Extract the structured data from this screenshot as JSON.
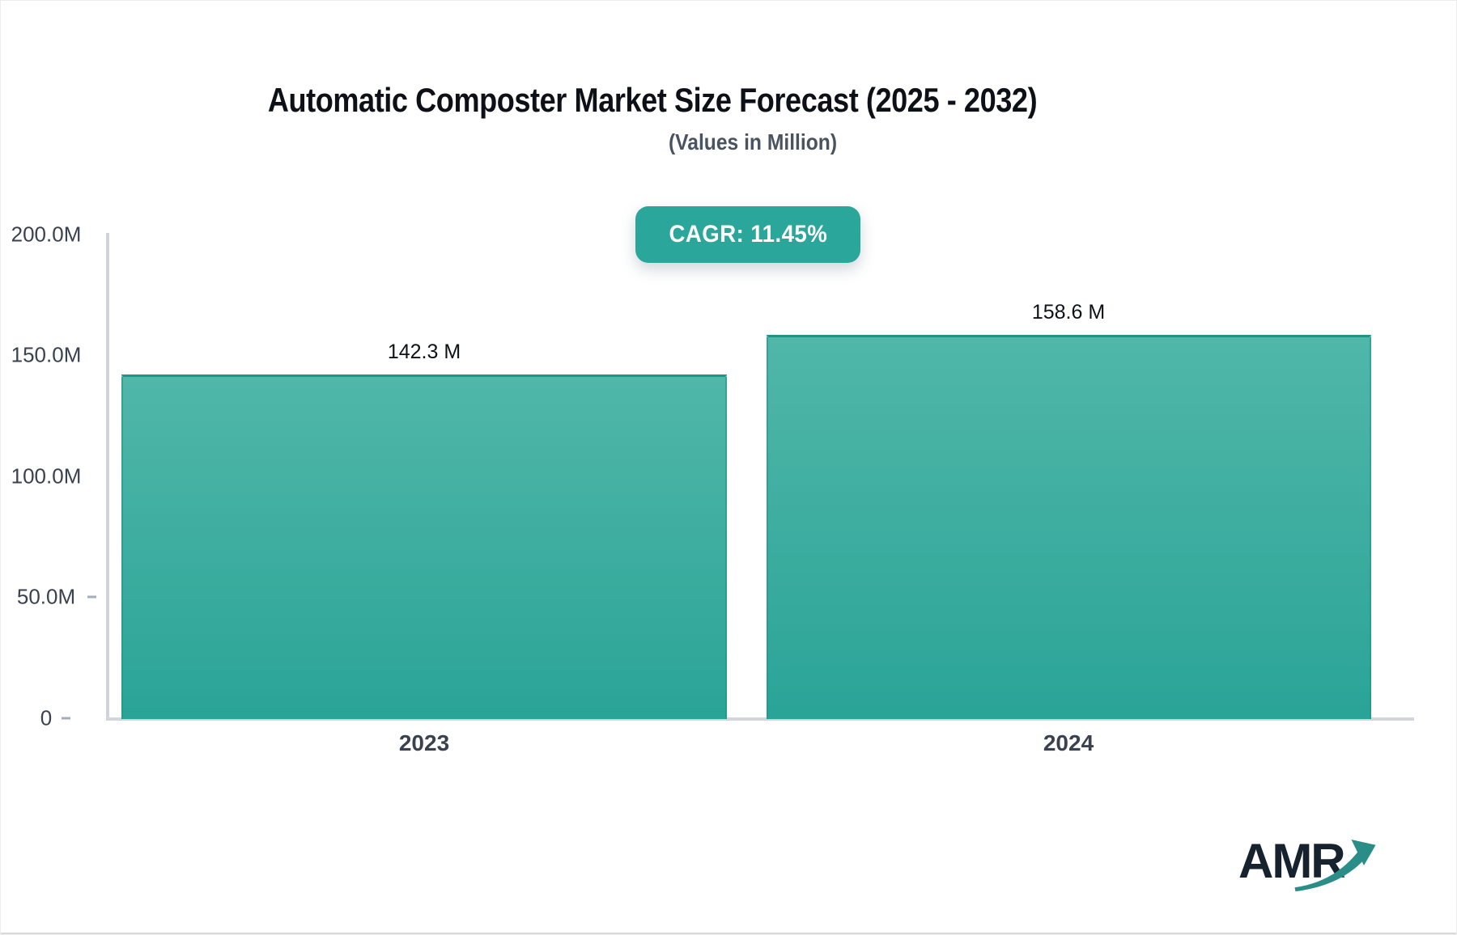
{
  "title": "Automatic Composter Market Size Forecast (2025 - 2032)",
  "subtitle": "(Values in Million)",
  "badge": {
    "label": "CAGR: 11.45%",
    "bg_color": "#2aa69a",
    "text_color": "#ffffff"
  },
  "chart_data": {
    "type": "bar",
    "categories": [
      "2023",
      "2024"
    ],
    "values": [
      142.3,
      158.6
    ],
    "value_labels": [
      "142.3 M",
      "158.6 M"
    ],
    "title": "Automatic Composter Market Size Forecast (2025 - 2032)",
    "subtitle": "(Values in Million)",
    "xlabel": "",
    "ylabel": "",
    "ylim": [
      0,
      200
    ],
    "y_tick_labels": [
      "200.0M",
      "150.0M",
      "100.0M",
      "50.0M",
      "0"
    ],
    "grid": false,
    "legend": false,
    "bar_gradient_top": "#50b7a9",
    "bar_gradient_bottom": "#2aa497",
    "bar_border_color": "#1d9489",
    "axis_line_color": "#cfd4dc",
    "tick_label_color": "#39424e",
    "annotation": "CAGR: 11.45%"
  },
  "logo": {
    "text": "AMR",
    "text_color": "#16222e",
    "arrow_color": "#2a8d88",
    "arrow_icon": "growth-arrow"
  }
}
